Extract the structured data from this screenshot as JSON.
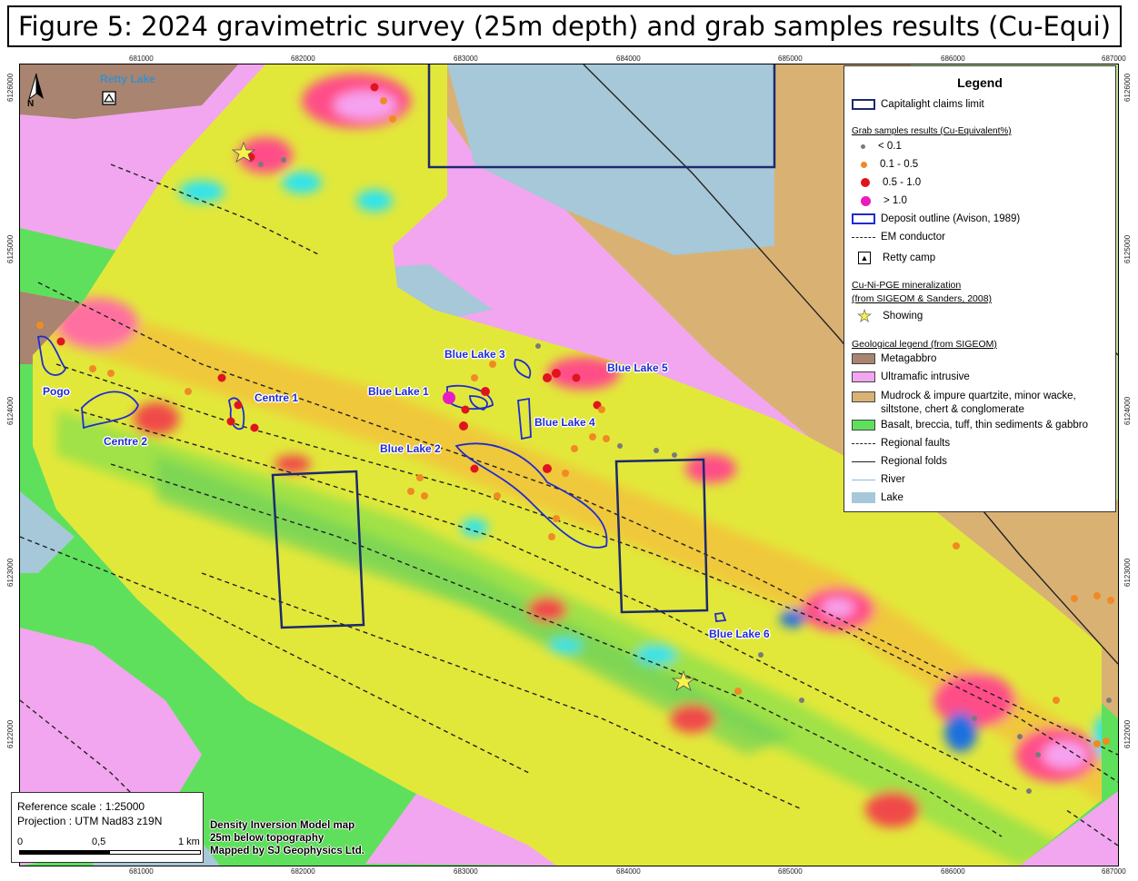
{
  "title": "Figure 5: 2024 gravimetric survey (25m depth) and grab samples results (Cu-Equi)",
  "axes": {
    "x_ticks": [
      "681000",
      "682000",
      "683000",
      "684000",
      "685000",
      "686000",
      "687000"
    ],
    "y_ticks": [
      "6126000",
      "6125000",
      "6124000",
      "6123000",
      "6122000"
    ]
  },
  "legend": {
    "title": "Legend",
    "claims": "Capitalight claims limit",
    "grab_title": "Grab samples results (Cu-Equivalent%)",
    "grab_classes": [
      {
        "label": "< 0.1",
        "color": "#7a7a7a"
      },
      {
        "label": "0.1 - 0.5",
        "color": "#f08a24"
      },
      {
        "label": "0.5 - 1.0",
        "color": "#e0141e"
      },
      {
        "label": "> 1.0",
        "color": "#e81cc0"
      }
    ],
    "deposit": "Deposit outline (Avison, 1989)",
    "em": "EM conductor",
    "camp": "Retty camp",
    "cuni_title_1": "Cu-Ni-PGE mineralization",
    "cuni_title_2": "(from SIGEOM & Sanders, 2008)",
    "showing": "Showing",
    "geo_title": "Geological legend (from SIGEOM)",
    "units": [
      {
        "label": "Metagabbro",
        "color": "#a98470"
      },
      {
        "label": "Ultramafic intrusive",
        "color": "#f2a6ef"
      },
      {
        "label": "Mudrock & impure quartzite, minor wacke,",
        "label2": "siltstone, chert & conglomerate",
        "color": "#d9b273"
      },
      {
        "label": "Basalt, breccia, tuff, thin sediments & gabbro",
        "color": "#5fe05c"
      }
    ],
    "faults": "Regional faults",
    "folds": "Regional folds",
    "river": "River",
    "lake": "Lake"
  },
  "places": {
    "retty_lake": "Retty Lake",
    "pogo": "Pogo",
    "centre1": "Centre 1",
    "centre2": "Centre 2",
    "bl1": "Blue Lake 1",
    "bl2": "Blue Lake 2",
    "bl3": "Blue Lake 3",
    "bl4": "Blue Lake 4",
    "bl5": "Blue Lake 5",
    "bl6": "Blue Lake 6"
  },
  "north": "N",
  "reference": {
    "scale": "Reference scale : 1:25000",
    "projection": "Projection : UTM Nad83 z19N",
    "bar_0": "0",
    "bar_mid": "0,5",
    "bar_end": "1 km"
  },
  "credit": [
    "Density Inversion Model map",
    "25m below topography",
    "Mapped by SJ Geophysics Ltd."
  ]
}
